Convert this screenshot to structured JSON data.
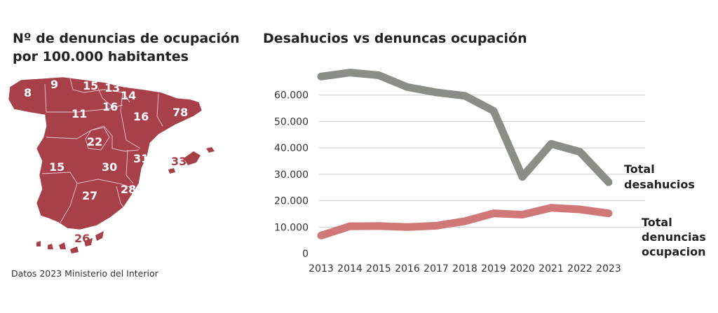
{
  "map": {
    "title": "Nº de denuncias de ocupación por 100.000 habitantes",
    "source": "Datos 2023 Ministerio del Interior",
    "fill_color": "#a8404a",
    "region_values": [
      "8",
      "9",
      "15",
      "13",
      "14",
      "11",
      "16",
      "16",
      "78",
      "22",
      "31",
      "33",
      "15",
      "30",
      "28",
      "27",
      "26"
    ]
  },
  "chart_data": {
    "type": "line",
    "title": "Desahucios vs denuncas ocupación",
    "categories": [
      "2013",
      "2014",
      "2015",
      "2016",
      "2017",
      "2018",
      "2019",
      "2020",
      "2021",
      "2022",
      "2023"
    ],
    "ylim": [
      0,
      70000
    ],
    "yticks": [
      "0",
      "10.000",
      "20.000",
      "30.000",
      "40.000",
      "50.000",
      "60.000"
    ],
    "grid": true,
    "series": [
      {
        "name": "Total desahucios",
        "color": "#8a8d88",
        "values": [
          67000,
          68500,
          67500,
          63000,
          61000,
          59700,
          54000,
          29000,
          41500,
          38500,
          27000
        ]
      },
      {
        "name": "Total denuncias ocupacion",
        "color": "#d07878",
        "values": [
          6800,
          10300,
          10400,
          10000,
          10500,
          12200,
          15200,
          14700,
          17300,
          16700,
          15200
        ]
      }
    ]
  }
}
